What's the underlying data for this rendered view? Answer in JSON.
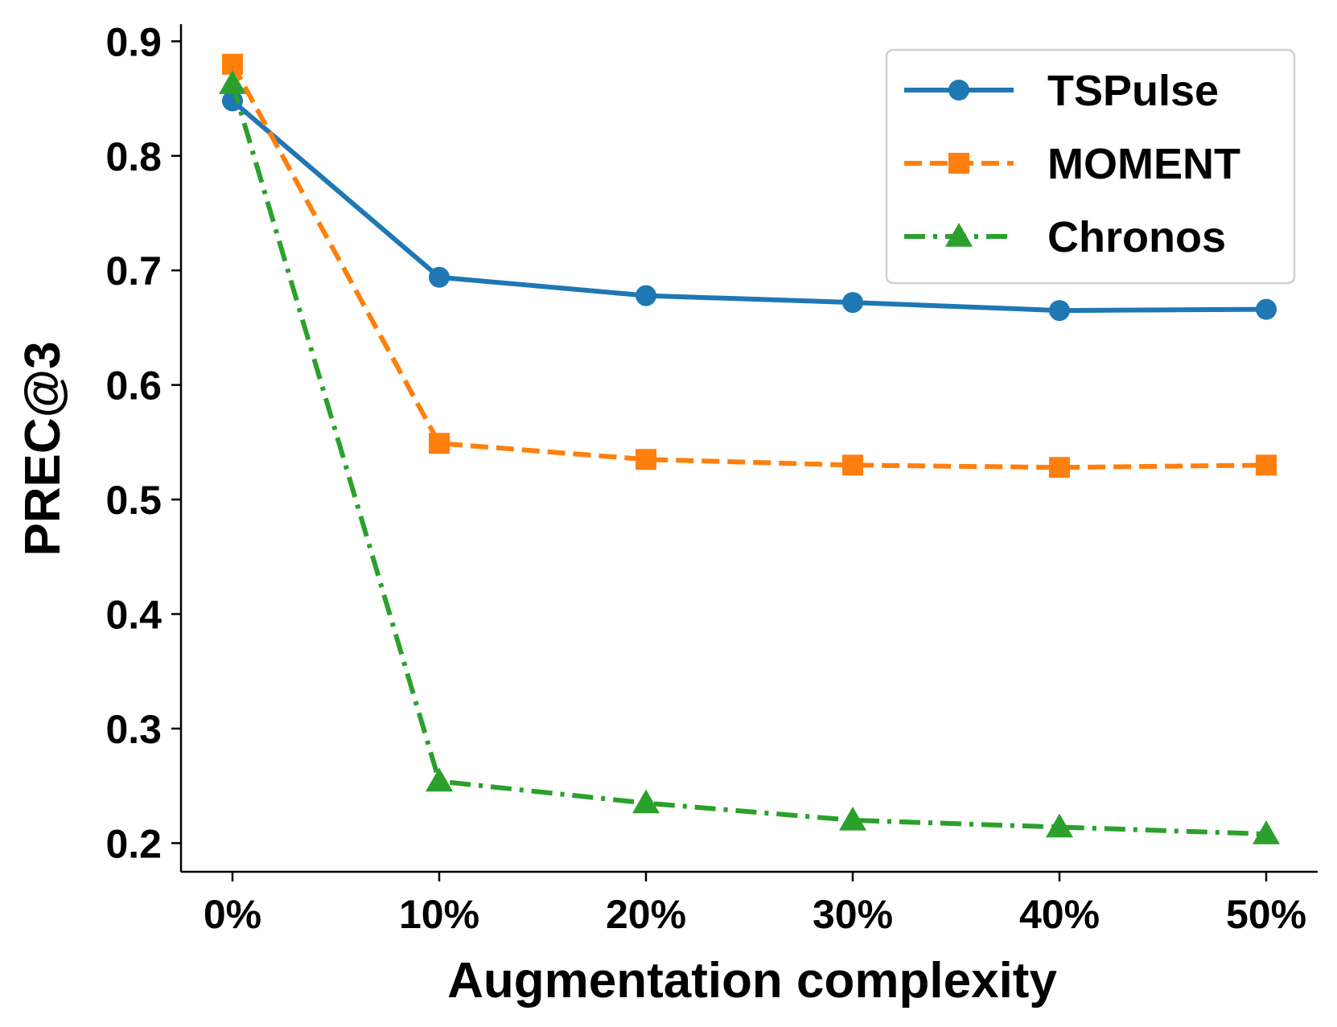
{
  "chart_data": {
    "type": "line",
    "title": "",
    "xlabel": "Augmentation complexity",
    "ylabel": "PREC@3",
    "categories": [
      "0%",
      "10%",
      "20%",
      "30%",
      "40%",
      "50%"
    ],
    "ylim": [
      0.175,
      0.915
    ],
    "yticks": [
      0.2,
      0.3,
      0.4,
      0.5,
      0.6,
      0.7,
      0.8,
      0.9
    ],
    "ytick_labels": [
      "0.2",
      "0.3",
      "0.4",
      "0.5",
      "0.6",
      "0.7",
      "0.8",
      "0.9"
    ],
    "grid": false,
    "legend_position": "top-right",
    "series": [
      {
        "name": "TSPulse",
        "color": "#1f77b4",
        "marker": "circle",
        "linestyle": "solid",
        "values": [
          0.848,
          0.694,
          0.678,
          0.672,
          0.665,
          0.666
        ]
      },
      {
        "name": "MOMENT",
        "color": "#ff7f0e",
        "marker": "square",
        "linestyle": "dashed",
        "values": [
          0.88,
          0.549,
          0.535,
          0.53,
          0.528,
          0.53
        ]
      },
      {
        "name": "Chronos",
        "color": "#2ca02c",
        "marker": "triangle",
        "linestyle": "dashdot",
        "values": [
          0.863,
          0.254,
          0.235,
          0.22,
          0.214,
          0.208
        ]
      }
    ]
  }
}
